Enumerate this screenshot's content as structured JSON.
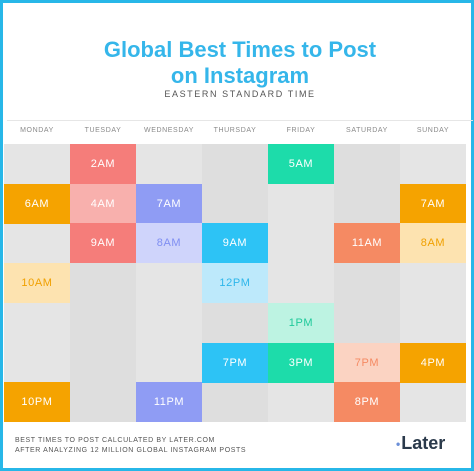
{
  "chart_data": {
    "type": "table",
    "title_line1": "Global Best Times to Post",
    "title_line2": "on Instagram",
    "subtitle": "EASTERN STANDARD TIME",
    "days": [
      "MONDAY",
      "TUESDAY",
      "WEDNESDAY",
      "THURSDAY",
      "FRIDAY",
      "SATURDAY",
      "SUNDAY"
    ],
    "column_background": [
      "#e5e5e5",
      "#dedede",
      "#e5e5e5",
      "#dedede",
      "#e5e5e5",
      "#dedede",
      "#e5e5e5"
    ],
    "slots": [
      {
        "day": "MONDAY",
        "row": 1,
        "label": "6AM",
        "color": "#f5a300",
        "text_color": "#ffffff"
      },
      {
        "day": "MONDAY",
        "row": 3,
        "label": "10AM",
        "color": "#fde3b0",
        "text_color": "#f0a000"
      },
      {
        "day": "MONDAY",
        "row": 6,
        "label": "10PM",
        "color": "#f5a300",
        "text_color": "#ffffff"
      },
      {
        "day": "TUESDAY",
        "row": 0,
        "label": "2AM",
        "color": "#f57d7a",
        "text_color": "#ffffff"
      },
      {
        "day": "TUESDAY",
        "row": 1,
        "label": "4AM",
        "color": "#f8b0ad",
        "text_color": "#ffffff"
      },
      {
        "day": "TUESDAY",
        "row": 2,
        "label": "9AM",
        "color": "#f57d7a",
        "text_color": "#ffffff"
      },
      {
        "day": "WEDNESDAY",
        "row": 1,
        "label": "7AM",
        "color": "#8f9cf4",
        "text_color": "#ffffff"
      },
      {
        "day": "WEDNESDAY",
        "row": 2,
        "label": "8AM",
        "color": "#cfd4fb",
        "text_color": "#7f8ef2"
      },
      {
        "day": "WEDNESDAY",
        "row": 6,
        "label": "11PM",
        "color": "#8f9cf4",
        "text_color": "#ffffff"
      },
      {
        "day": "THURSDAY",
        "row": 2,
        "label": "9AM",
        "color": "#2dc3f5",
        "text_color": "#ffffff"
      },
      {
        "day": "THURSDAY",
        "row": 3,
        "label": "12PM",
        "color": "#bde9fb",
        "text_color": "#2db6ea"
      },
      {
        "day": "THURSDAY",
        "row": 5,
        "label": "7PM",
        "color": "#2dc3f5",
        "text_color": "#ffffff"
      },
      {
        "day": "FRIDAY",
        "row": 0,
        "label": "5AM",
        "color": "#1ddcaa",
        "text_color": "#ffffff"
      },
      {
        "day": "FRIDAY",
        "row": 4,
        "label": "1PM",
        "color": "#bdf3e2",
        "text_color": "#1fc99a"
      },
      {
        "day": "FRIDAY",
        "row": 5,
        "label": "3PM",
        "color": "#1ddcaa",
        "text_color": "#ffffff"
      },
      {
        "day": "SATURDAY",
        "row": 2,
        "label": "11AM",
        "color": "#f58a63",
        "text_color": "#ffffff"
      },
      {
        "day": "SATURDAY",
        "row": 5,
        "label": "7PM",
        "color": "#fbd3c2",
        "text_color": "#f58a63"
      },
      {
        "day": "SATURDAY",
        "row": 6,
        "label": "8PM",
        "color": "#f58a63",
        "text_color": "#ffffff"
      },
      {
        "day": "SUNDAY",
        "row": 1,
        "label": "7AM",
        "color": "#f5a300",
        "text_color": "#ffffff"
      },
      {
        "day": "SUNDAY",
        "row": 2,
        "label": "8AM",
        "color": "#fde3b0",
        "text_color": "#f0a000"
      },
      {
        "day": "SUNDAY",
        "row": 5,
        "label": "4PM",
        "color": "#f5a300",
        "text_color": "#ffffff"
      }
    ]
  },
  "footer": {
    "line1": "BEST TIMES TO POST  CALCULATED BY LATER.COM",
    "line2": "AFTER ANALYZING 12 MILLION GLOBAL INSTAGRAM POSTS"
  },
  "logo": {
    "text": "Later",
    "icon": "later-logo-icon"
  },
  "colors": {
    "title": "#35b6ea",
    "frame": "#27b7e8"
  }
}
